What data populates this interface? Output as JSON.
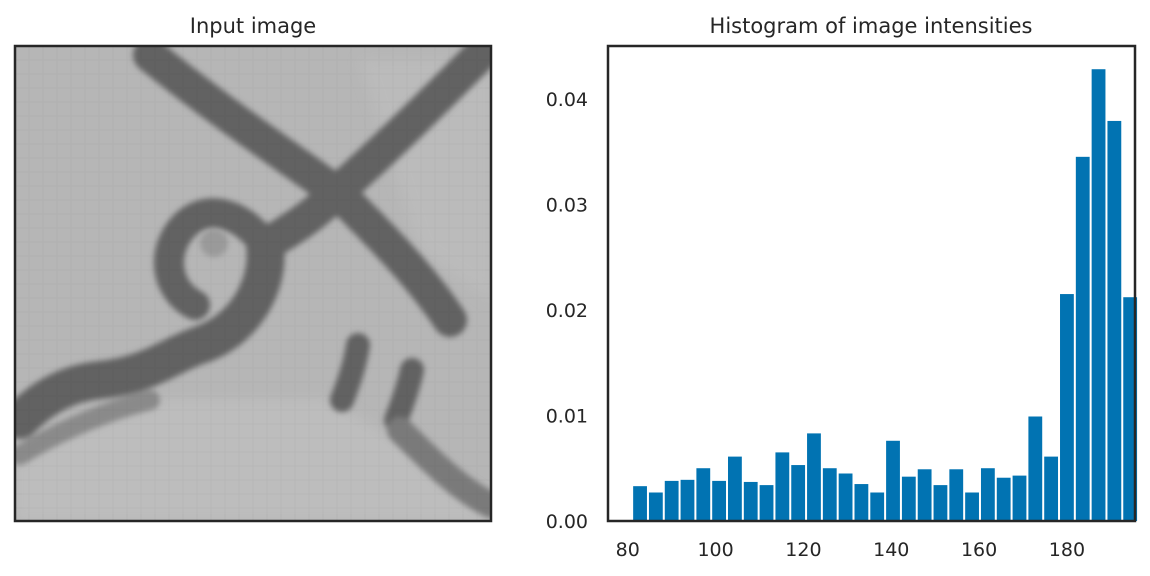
{
  "panels": {
    "left": {
      "title": "Input image"
    },
    "right": {
      "title": "Histogram of image intensities"
    }
  },
  "colors": {
    "bar": "#0173b2",
    "axes": "#262626",
    "image_background": "#b6b6b6",
    "image_stroke": "#5f5f5f"
  },
  "chart_data": [
    {
      "type": "image",
      "title": "Input image",
      "description_kind": "grayscale-pixel-image"
    },
    {
      "type": "bar",
      "title": "Histogram of image intensities",
      "xlabel": "",
      "ylabel": "",
      "xlim": [
        75.5,
        195.5
      ],
      "ylim": [
        0,
        0.045
      ],
      "xticks": [
        80,
        100,
        120,
        140,
        160,
        180
      ],
      "yticks": [
        0.0,
        0.01,
        0.02,
        0.03,
        0.04
      ],
      "ytick_labels": [
        "0.00",
        "0.01",
        "0.02",
        "0.03",
        "0.04"
      ],
      "bin_width": 3.6,
      "bin_start": 81.0,
      "values": [
        0.0033,
        0.0027,
        0.0038,
        0.0039,
        0.005,
        0.0038,
        0.0061,
        0.0037,
        0.0034,
        0.0065,
        0.0053,
        0.0083,
        0.005,
        0.0045,
        0.0035,
        0.0027,
        0.0076,
        0.0042,
        0.0049,
        0.0034,
        0.0049,
        0.0027,
        0.005,
        0.0041,
        0.0043,
        0.0099,
        0.0061,
        0.0215,
        0.0345,
        0.0428,
        0.0379,
        0.0212
      ],
      "grid": false,
      "legend": "none"
    }
  ]
}
